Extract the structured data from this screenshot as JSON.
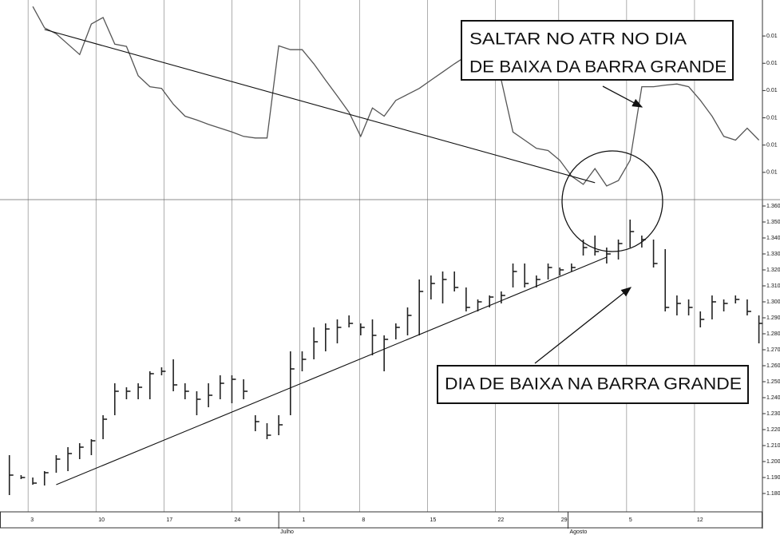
{
  "chart_data": [
    {
      "type": "line",
      "color": "#555555",
      "xlim": [
        -0.8,
        64.3
      ],
      "ylim": [
        0.012,
        0.01566
      ],
      "yticks": [
        {
          "value": 0.015,
          "label": "0.01"
        },
        {
          "value": 0.0145,
          "label": "0.01"
        },
        {
          "value": 0.014,
          "label": "0.01"
        },
        {
          "value": 0.0135,
          "label": "0.01"
        },
        {
          "value": 0.013,
          "label": "0.01"
        },
        {
          "value": 0.0125,
          "label": "0.01"
        }
      ],
      "values": [
        null,
        null,
        0.01554,
        0.01515,
        0.01504,
        0.01485,
        0.01466,
        0.01522,
        0.01534,
        0.01485,
        0.01481,
        0.01427,
        0.01407,
        0.01404,
        0.01375,
        0.01353,
        0.01346,
        0.01338,
        0.01331,
        0.01324,
        0.01316,
        0.01313,
        0.01313,
        0.01482,
        0.01475,
        0.01475,
        0.01449,
        0.01419,
        0.0139,
        0.0136,
        0.01316,
        0.01368,
        0.01353,
        0.01382,
        0.01393,
        0.01404,
        0.01419,
        0.01434,
        0.01449,
        0.01463,
        0.01456,
        0.01441,
        0.01419,
        0.01324,
        0.01309,
        0.01294,
        0.0129,
        0.01272,
        0.01243,
        0.01228,
        0.01257,
        0.01225,
        0.01235,
        0.01272,
        0.01407,
        0.01407,
        0.0141,
        0.01412,
        0.01407,
        0.01382,
        0.01353,
        0.01316,
        0.01309,
        0.01331,
        0.01309
      ],
      "trendline": {
        "x": [
          3,
          50
        ],
        "values": [
          0.01512,
          0.01231
        ]
      },
      "annotations": [
        "SALTAR NO ATR NO DIA",
        "DE BAIXA DA BARRA GRANDE"
      ]
    },
    {
      "type": "ohlc",
      "color": "#222222",
      "xlim": [
        -0.8,
        64.3
      ],
      "ylim": [
        1.169,
        1.364
      ],
      "yticks": [
        {
          "value": 1.36,
          "label": "1.360"
        },
        {
          "value": 1.35,
          "label": "1.350"
        },
        {
          "value": 1.34,
          "label": "1.340"
        },
        {
          "value": 1.33,
          "label": "1.330"
        },
        {
          "value": 1.32,
          "label": "1.320"
        },
        {
          "value": 1.31,
          "label": "1.310"
        },
        {
          "value": 1.3,
          "label": "1.300"
        },
        {
          "value": 1.29,
          "label": "1.290"
        },
        {
          "value": 1.28,
          "label": "1.280"
        },
        {
          "value": 1.27,
          "label": "1.270"
        },
        {
          "value": 1.26,
          "label": "1.260"
        },
        {
          "value": 1.25,
          "label": "1.250"
        },
        {
          "value": 1.24,
          "label": "1.240"
        },
        {
          "value": 1.23,
          "label": "1.230"
        },
        {
          "value": 1.22,
          "label": "1.220"
        },
        {
          "value": 1.21,
          "label": "1.210"
        },
        {
          "value": 1.2,
          "label": "1.200"
        },
        {
          "value": 1.19,
          "label": "1.190"
        },
        {
          "value": 1.18,
          "label": "1.180"
        }
      ],
      "xticks": [
        {
          "value": 1.6,
          "label": "3"
        },
        {
          "value": 7.4,
          "label": "10"
        },
        {
          "value": 13.2,
          "label": "17"
        },
        {
          "value": 19,
          "label": "24"
        },
        {
          "value": 24.8,
          "label": "1"
        },
        {
          "value": 29.9,
          "label": "8"
        },
        {
          "value": 35.7,
          "label": "15"
        },
        {
          "value": 41.5,
          "label": "22"
        },
        {
          "value": 46.9,
          "label": "29"
        },
        {
          "value": 52.7,
          "label": "5"
        },
        {
          "value": 58.5,
          "label": "12"
        }
      ],
      "month_labels": [
        {
          "value": 23,
          "label": "Julho"
        },
        {
          "value": 47.7,
          "label": "Agosto"
        }
      ],
      "high": [
        1.204,
        1.1915,
        1.19,
        1.194,
        1.204,
        1.209,
        1.2115,
        1.214,
        1.229,
        1.249,
        1.2465,
        1.249,
        1.2565,
        1.259,
        1.264,
        1.249,
        1.244,
        1.249,
        1.254,
        1.254,
        1.2515,
        1.229,
        1.224,
        1.229,
        1.269,
        1.269,
        1.284,
        1.2865,
        1.289,
        1.2915,
        1.2865,
        1.289,
        1.279,
        1.2865,
        1.2965,
        1.314,
        1.3165,
        1.319,
        1.319,
        1.309,
        1.3015,
        1.304,
        1.3065,
        1.324,
        1.324,
        1.3165,
        1.324,
        1.3215,
        1.324,
        1.339,
        1.3415,
        1.334,
        1.339,
        1.3515,
        1.3415,
        1.339,
        1.333,
        1.304,
        1.3015,
        1.294,
        1.304,
        1.3015,
        1.304,
        1.3015,
        1.2915
      ],
      "low": [
        1.179,
        1.189,
        1.1855,
        1.185,
        1.193,
        1.194,
        1.2015,
        1.204,
        1.214,
        1.229,
        1.239,
        1.239,
        1.239,
        1.254,
        1.244,
        1.239,
        1.229,
        1.234,
        1.239,
        1.2365,
        1.239,
        1.219,
        1.214,
        1.2165,
        1.229,
        1.2565,
        1.264,
        1.269,
        1.274,
        1.284,
        1.279,
        1.2665,
        1.2565,
        1.2765,
        1.279,
        1.279,
        1.3015,
        1.299,
        1.3065,
        1.294,
        1.294,
        1.2965,
        1.299,
        1.309,
        1.309,
        1.309,
        1.314,
        1.3165,
        1.319,
        1.329,
        1.329,
        1.324,
        1.3265,
        1.334,
        1.334,
        1.3215,
        1.294,
        1.2915,
        1.2915,
        1.284,
        1.289,
        1.294,
        1.299,
        1.2915,
        1.274
      ],
      "close": [
        1.1915,
        1.19,
        1.1865,
        1.193,
        1.2015,
        1.205,
        1.209,
        1.213,
        1.2265,
        1.244,
        1.244,
        1.2465,
        1.255,
        1.2565,
        1.248,
        1.244,
        1.239,
        1.2415,
        1.249,
        1.2515,
        1.244,
        1.225,
        1.2165,
        1.223,
        1.258,
        1.264,
        1.275,
        1.283,
        1.284,
        1.2865,
        1.284,
        1.279,
        1.2765,
        1.284,
        1.2915,
        1.3065,
        1.3115,
        1.314,
        1.309,
        1.2965,
        1.3,
        1.303,
        1.304,
        1.319,
        1.3115,
        1.314,
        1.3215,
        1.32,
        1.3215,
        1.334,
        1.3315,
        1.33,
        1.3365,
        1.344,
        1.339,
        1.324,
        1.2965,
        1.299,
        1.2965,
        1.289,
        1.3,
        1.299,
        1.3015,
        1.294,
        1.2865
      ],
      "trendline": {
        "x": [
          4,
          51
        ],
        "values": [
          1.1855,
          1.328
        ]
      },
      "annotations": [
        "DIA DE BAIXA NA BARRA GRANDE"
      ]
    }
  ]
}
